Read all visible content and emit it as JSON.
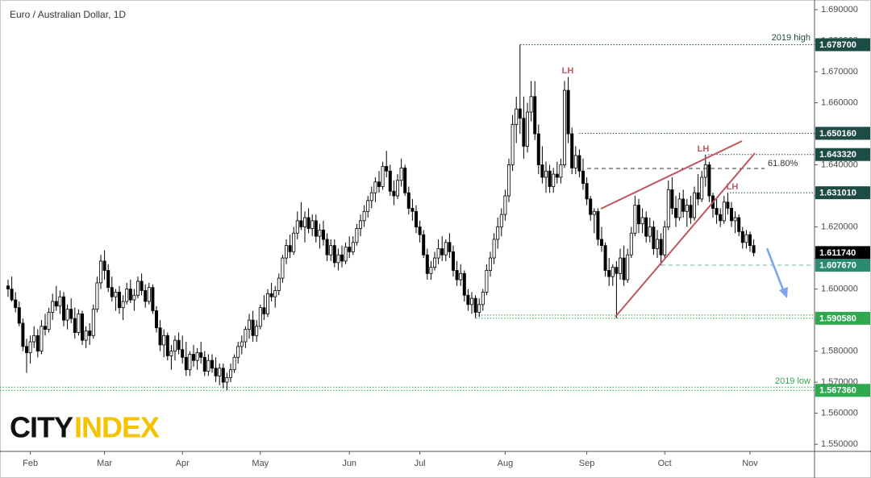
{
  "chart_data": {
    "type": "candlestick",
    "title": "Euro / Australian Dollar, 1D",
    "ylim": [
      1.5477,
      1.6931
    ],
    "yticks": [
      {
        "value": 1.69,
        "label": "1.690000"
      },
      {
        "value": 1.68,
        "label": "1.680000"
      },
      {
        "value": 1.67,
        "label": "1.670000"
      },
      {
        "value": 1.66,
        "label": "1.660000"
      },
      {
        "value": 1.65,
        "label": "1.650000"
      },
      {
        "value": 1.64,
        "label": "1.640000"
      },
      {
        "value": 1.63,
        "label": "1.630000"
      },
      {
        "value": 1.62,
        "label": "1.620000"
      },
      {
        "value": 1.61,
        "label": "1.610000"
      },
      {
        "value": 1.6,
        "label": "1.600000"
      },
      {
        "value": 1.59,
        "label": "1.590000"
      },
      {
        "value": 1.58,
        "label": "1.580000"
      },
      {
        "value": 1.57,
        "label": "1.570000"
      },
      {
        "value": 1.56,
        "label": "1.560000"
      },
      {
        "value": 1.55,
        "label": "1.550000"
      }
    ],
    "xticks": [
      {
        "value": 6,
        "label": "Feb"
      },
      {
        "value": 26,
        "label": "Mar"
      },
      {
        "value": 47,
        "label": "Apr"
      },
      {
        "value": 68,
        "label": "May"
      },
      {
        "value": 92,
        "label": "Jun"
      },
      {
        "value": 111,
        "label": "Jul"
      },
      {
        "value": 134,
        "label": "Aug"
      },
      {
        "value": 156,
        "label": "Sep"
      },
      {
        "value": 177,
        "label": "Oct"
      },
      {
        "value": 200,
        "label": "Nov"
      }
    ],
    "price_labels": [
      {
        "value": 1.6787,
        "label": "1.678700"
      },
      {
        "value": 1.65016,
        "label": "1.650160"
      },
      {
        "value": 1.64332,
        "label": "1.643320"
      },
      {
        "value": 1.63101,
        "label": "1.631010"
      },
      {
        "value": 1.61174,
        "label": "1.611740"
      },
      {
        "value": 1.60767,
        "label": "1.607670"
      },
      {
        "value": 1.59058,
        "label": "1.590580"
      },
      {
        "value": 1.56736,
        "label": "1.567360"
      }
    ],
    "annotations": [
      "2019 high",
      "2019 low",
      "LH",
      "LH",
      "LH",
      "61.80%"
    ],
    "logo": [
      "CITY",
      "INDEX"
    ],
    "candles": [
      [
        1.601,
        1.603,
        1.5975,
        1.6
      ],
      [
        1.6,
        1.604,
        1.596,
        1.5965
      ],
      [
        1.5965,
        1.599,
        1.5925,
        1.594
      ],
      [
        1.594,
        1.596,
        1.588,
        1.589
      ],
      [
        1.589,
        1.5905,
        1.58,
        1.5815
      ],
      [
        1.5815,
        1.584,
        1.573,
        1.5795
      ],
      [
        1.5795,
        1.585,
        1.576,
        1.583
      ],
      [
        1.583,
        1.588,
        1.581,
        1.585
      ],
      [
        1.585,
        1.587,
        1.578,
        1.58
      ],
      [
        1.58,
        1.59,
        1.579,
        1.588
      ],
      [
        1.588,
        1.592,
        1.585,
        1.587
      ],
      [
        1.587,
        1.594,
        1.586,
        1.5925
      ],
      [
        1.5925,
        1.5985,
        1.59,
        1.596
      ],
      [
        1.596,
        1.601,
        1.593,
        1.5945
      ],
      [
        1.5945,
        1.5995,
        1.592,
        1.5975
      ],
      [
        1.5975,
        1.599,
        1.588,
        1.59
      ],
      [
        1.59,
        1.595,
        1.587,
        1.5935
      ],
      [
        1.5935,
        1.597,
        1.589,
        1.5905
      ],
      [
        1.5905,
        1.594,
        1.584,
        1.586
      ],
      [
        1.586,
        1.5935,
        1.585,
        1.592
      ],
      [
        1.592,
        1.593,
        1.582,
        1.5835
      ],
      [
        1.5835,
        1.588,
        1.581,
        1.5865
      ],
      [
        1.5865,
        1.589,
        1.582,
        1.585
      ],
      [
        1.585,
        1.595,
        1.584,
        1.5935
      ],
      [
        1.5935,
        1.604,
        1.5925,
        1.602
      ],
      [
        1.602,
        1.611,
        1.6,
        1.609
      ],
      [
        1.609,
        1.6125,
        1.603,
        1.606
      ],
      [
        1.606,
        1.608,
        1.599,
        1.6005
      ],
      [
        1.6005,
        1.604,
        1.596,
        1.5975
      ],
      [
        1.5975,
        1.6,
        1.593,
        1.599
      ],
      [
        1.599,
        1.601,
        1.592,
        1.594
      ],
      [
        1.594,
        1.598,
        1.59,
        1.596
      ],
      [
        1.596,
        1.602,
        1.595,
        1.6
      ],
      [
        1.6,
        1.603,
        1.5955,
        1.5965
      ],
      [
        1.5965,
        1.6,
        1.593,
        1.598
      ],
      [
        1.598,
        1.604,
        1.597,
        1.6025
      ],
      [
        1.6025,
        1.605,
        1.598,
        1.5995
      ],
      [
        1.5995,
        1.6015,
        1.594,
        1.596
      ],
      [
        1.596,
        1.602,
        1.595,
        1.6005
      ],
      [
        1.6005,
        1.6015,
        1.592,
        1.593
      ],
      [
        1.593,
        1.5945,
        1.586,
        1.5875
      ],
      [
        1.5875,
        1.59,
        1.58,
        1.582
      ],
      [
        1.582,
        1.587,
        1.578,
        1.585
      ],
      [
        1.585,
        1.586,
        1.577,
        1.5785
      ],
      [
        1.5785,
        1.582,
        1.574,
        1.58
      ],
      [
        1.58,
        1.585,
        1.577,
        1.5835
      ],
      [
        1.5835,
        1.586,
        1.579,
        1.5805
      ],
      [
        1.5805,
        1.585,
        1.576,
        1.578
      ],
      [
        1.578,
        1.583,
        1.572,
        1.574
      ],
      [
        1.574,
        1.58,
        1.572,
        1.579
      ],
      [
        1.579,
        1.582,
        1.575,
        1.577
      ],
      [
        1.577,
        1.581,
        1.574,
        1.5795
      ],
      [
        1.5795,
        1.583,
        1.576,
        1.578
      ],
      [
        1.578,
        1.58,
        1.572,
        1.5735
      ],
      [
        1.5735,
        1.579,
        1.572,
        1.577
      ],
      [
        1.577,
        1.579,
        1.573,
        1.5745
      ],
      [
        1.5745,
        1.578,
        1.57,
        1.572
      ],
      [
        1.572,
        1.576,
        1.569,
        1.5745
      ],
      [
        1.5745,
        1.576,
        1.568,
        1.57
      ],
      [
        1.57,
        1.573,
        1.5674,
        1.5715
      ],
      [
        1.5715,
        1.576,
        1.57,
        1.574
      ],
      [
        1.574,
        1.579,
        1.573,
        1.578
      ],
      [
        1.578,
        1.583,
        1.576,
        1.5815
      ],
      [
        1.5815,
        1.585,
        1.579,
        1.583
      ],
      [
        1.583,
        1.588,
        1.581,
        1.587
      ],
      [
        1.587,
        1.592,
        1.584,
        1.59
      ],
      [
        1.59,
        1.593,
        1.583,
        1.585
      ],
      [
        1.585,
        1.59,
        1.583,
        1.588
      ],
      [
        1.588,
        1.595,
        1.587,
        1.594
      ],
      [
        1.594,
        1.598,
        1.59,
        1.592
      ],
      [
        1.592,
        1.6,
        1.591,
        1.5985
      ],
      [
        1.5985,
        1.602,
        1.596,
        1.5975
      ],
      [
        1.5975,
        1.601,
        1.594,
        1.5995
      ],
      [
        1.5995,
        1.605,
        1.598,
        1.6035
      ],
      [
        1.6035,
        1.611,
        1.602,
        1.61
      ],
      [
        1.61,
        1.616,
        1.608,
        1.614
      ],
      [
        1.614,
        1.6175,
        1.61,
        1.612
      ],
      [
        1.612,
        1.62,
        1.611,
        1.618
      ],
      [
        1.618,
        1.625,
        1.616,
        1.622
      ],
      [
        1.622,
        1.628,
        1.619,
        1.62
      ],
      [
        1.62,
        1.625,
        1.615,
        1.623
      ],
      [
        1.623,
        1.626,
        1.618,
        1.6195
      ],
      [
        1.6195,
        1.624,
        1.617,
        1.622
      ],
      [
        1.622,
        1.624,
        1.615,
        1.617
      ],
      [
        1.617,
        1.621,
        1.613,
        1.619
      ],
      [
        1.619,
        1.622,
        1.614,
        1.616
      ],
      [
        1.616,
        1.618,
        1.609,
        1.611
      ],
      [
        1.611,
        1.616,
        1.609,
        1.614
      ],
      [
        1.614,
        1.616,
        1.607,
        1.6085
      ],
      [
        1.6085,
        1.613,
        1.606,
        1.611
      ],
      [
        1.611,
        1.614,
        1.607,
        1.609
      ],
      [
        1.609,
        1.615,
        1.608,
        1.6135
      ],
      [
        1.6135,
        1.617,
        1.61,
        1.612
      ],
      [
        1.612,
        1.617,
        1.611,
        1.615
      ],
      [
        1.615,
        1.621,
        1.614,
        1.6195
      ],
      [
        1.6195,
        1.624,
        1.617,
        1.622
      ],
      [
        1.622,
        1.627,
        1.62,
        1.625
      ],
      [
        1.625,
        1.63,
        1.623,
        1.6285
      ],
      [
        1.6285,
        1.633,
        1.626,
        1.631
      ],
      [
        1.631,
        1.636,
        1.628,
        1.6345
      ],
      [
        1.6345,
        1.638,
        1.631,
        1.633
      ],
      [
        1.633,
        1.641,
        1.632,
        1.6395
      ],
      [
        1.6395,
        1.6445,
        1.636,
        1.638
      ],
      [
        1.638,
        1.64,
        1.63,
        1.6315
      ],
      [
        1.6315,
        1.635,
        1.627,
        1.63
      ],
      [
        1.63,
        1.637,
        1.629,
        1.635
      ],
      [
        1.635,
        1.642,
        1.633,
        1.639
      ],
      [
        1.639,
        1.64,
        1.63,
        1.631
      ],
      [
        1.631,
        1.633,
        1.624,
        1.626
      ],
      [
        1.626,
        1.629,
        1.622,
        1.625
      ],
      [
        1.625,
        1.627,
        1.618,
        1.62
      ],
      [
        1.62,
        1.622,
        1.615,
        1.6175
      ],
      [
        1.6175,
        1.619,
        1.61,
        1.611
      ],
      [
        1.611,
        1.613,
        1.603,
        1.605
      ],
      [
        1.605,
        1.609,
        1.603,
        1.607
      ],
      [
        1.607,
        1.612,
        1.606,
        1.61
      ],
      [
        1.61,
        1.616,
        1.608,
        1.613
      ],
      [
        1.613,
        1.617,
        1.609,
        1.611
      ],
      [
        1.611,
        1.616,
        1.609,
        1.615
      ],
      [
        1.615,
        1.618,
        1.61,
        1.612
      ],
      [
        1.612,
        1.614,
        1.604,
        1.606
      ],
      [
        1.606,
        1.609,
        1.601,
        1.603
      ],
      [
        1.603,
        1.608,
        1.601,
        1.605
      ],
      [
        1.605,
        1.606,
        1.596,
        1.598
      ],
      [
        1.598,
        1.6,
        1.593,
        1.595
      ],
      [
        1.595,
        1.599,
        1.592,
        1.597
      ],
      [
        1.597,
        1.598,
        1.5906,
        1.5925
      ],
      [
        1.5925,
        1.597,
        1.591,
        1.595
      ],
      [
        1.595,
        1.6,
        1.593,
        1.599
      ],
      [
        1.599,
        1.608,
        1.598,
        1.606
      ],
      [
        1.606,
        1.612,
        1.604,
        1.61
      ],
      [
        1.61,
        1.618,
        1.608,
        1.616
      ],
      [
        1.616,
        1.623,
        1.613,
        1.62
      ],
      [
        1.62,
        1.626,
        1.617,
        1.624
      ],
      [
        1.624,
        1.632,
        1.622,
        1.63
      ],
      [
        1.63,
        1.642,
        1.628,
        1.64
      ],
      [
        1.64,
        1.656,
        1.638,
        1.653
      ],
      [
        1.653,
        1.662,
        1.647,
        1.658
      ],
      [
        1.658,
        1.6787,
        1.65,
        1.655
      ],
      [
        1.655,
        1.662,
        1.642,
        1.646
      ],
      [
        1.646,
        1.66,
        1.644,
        1.657
      ],
      [
        1.657,
        1.667,
        1.654,
        1.662
      ],
      [
        1.662,
        1.667,
        1.648,
        1.65
      ],
      [
        1.65,
        1.653,
        1.637,
        1.64
      ],
      [
        1.64,
        1.646,
        1.634,
        1.636
      ],
      [
        1.636,
        1.641,
        1.631,
        1.638
      ],
      [
        1.638,
        1.64,
        1.631,
        1.633
      ],
      [
        1.633,
        1.639,
        1.631,
        1.637
      ],
      [
        1.637,
        1.641,
        1.634,
        1.636
      ],
      [
        1.636,
        1.642,
        1.634,
        1.64
      ],
      [
        1.64,
        1.667,
        1.639,
        1.664
      ],
      [
        1.664,
        1.6683,
        1.647,
        1.65
      ],
      [
        1.65,
        1.652,
        1.637,
        1.639
      ],
      [
        1.639,
        1.646,
        1.637,
        1.643
      ],
      [
        1.643,
        1.645,
        1.636,
        1.638
      ],
      [
        1.638,
        1.642,
        1.632,
        1.634
      ],
      [
        1.634,
        1.636,
        1.627,
        1.629
      ],
      [
        1.629,
        1.63,
        1.622,
        1.624
      ],
      [
        1.624,
        1.626,
        1.618,
        1.625
      ],
      [
        1.625,
        1.626,
        1.614,
        1.616
      ],
      [
        1.616,
        1.62,
        1.612,
        1.614
      ],
      [
        1.614,
        1.615,
        1.604,
        1.606
      ],
      [
        1.606,
        1.61,
        1.601,
        1.604
      ],
      [
        1.604,
        1.608,
        1.601,
        1.607
      ],
      [
        1.607,
        1.609,
        1.5906,
        1.605
      ],
      [
        1.605,
        1.613,
        1.603,
        1.61
      ],
      [
        1.61,
        1.614,
        1.601,
        1.603
      ],
      [
        1.603,
        1.613,
        1.602,
        1.611
      ],
      [
        1.611,
        1.62,
        1.61,
        1.618
      ],
      [
        1.618,
        1.63,
        1.617,
        1.627
      ],
      [
        1.627,
        1.629,
        1.618,
        1.621
      ],
      [
        1.621,
        1.626,
        1.618,
        1.623
      ],
      [
        1.623,
        1.625,
        1.615,
        1.617
      ],
      [
        1.617,
        1.623,
        1.615,
        1.62
      ],
      [
        1.62,
        1.622,
        1.611,
        1.613
      ],
      [
        1.613,
        1.619,
        1.61,
        1.616
      ],
      [
        1.616,
        1.618,
        1.6077,
        1.611
      ],
      [
        1.611,
        1.622,
        1.61,
        1.62
      ],
      [
        1.62,
        1.635,
        1.619,
        1.632
      ],
      [
        1.632,
        1.636,
        1.624,
        1.626
      ],
      [
        1.626,
        1.63,
        1.62,
        1.623
      ],
      [
        1.623,
        1.631,
        1.622,
        1.629
      ],
      [
        1.629,
        1.632,
        1.623,
        1.625
      ],
      [
        1.625,
        1.629,
        1.62,
        1.627
      ],
      [
        1.627,
        1.63,
        1.621,
        1.623
      ],
      [
        1.623,
        1.633,
        1.622,
        1.631
      ],
      [
        1.631,
        1.637,
        1.627,
        1.629
      ],
      [
        1.629,
        1.638,
        1.628,
        1.636
      ],
      [
        1.636,
        1.6433,
        1.633,
        1.64
      ],
      [
        1.64,
        1.641,
        1.628,
        1.63
      ],
      [
        1.63,
        1.631,
        1.623,
        1.626
      ],
      [
        1.626,
        1.629,
        1.621,
        1.624
      ],
      [
        1.624,
        1.626,
        1.62,
        1.622
      ],
      [
        1.622,
        1.63,
        1.621,
        1.628
      ],
      [
        1.628,
        1.631,
        1.624,
        1.626
      ],
      [
        1.626,
        1.628,
        1.62,
        1.622
      ],
      [
        1.622,
        1.625,
        1.618,
        1.623
      ],
      [
        1.623,
        1.624,
        1.617,
        1.6185
      ],
      [
        1.6185,
        1.62,
        1.613,
        1.615
      ],
      [
        1.615,
        1.619,
        1.613,
        1.6175
      ],
      [
        1.6175,
        1.6185,
        1.612,
        1.614
      ],
      [
        1.614,
        1.616,
        1.6105,
        1.6117
      ]
    ]
  }
}
